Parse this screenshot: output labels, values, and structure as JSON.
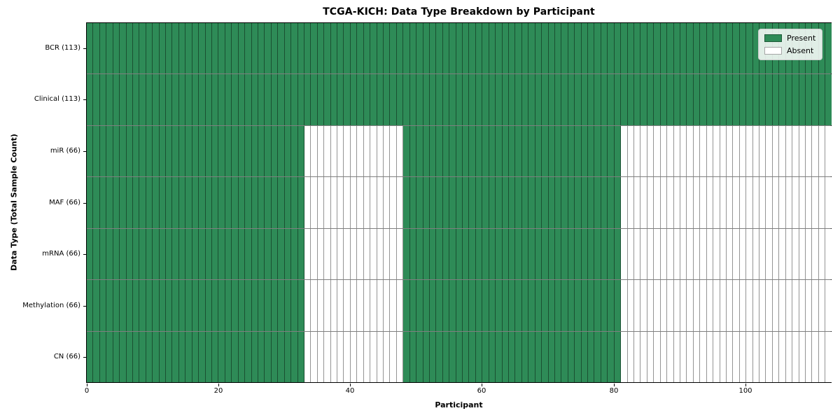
{
  "chart_data": {
    "type": "heatmap",
    "title": "TCGA-KICH: Data Type Breakdown by Participant",
    "xlabel": "Participant",
    "ylabel": "Data Type (Total Sample Count)",
    "n_participants": 113,
    "xlim": [
      0,
      113
    ],
    "x_ticks": [
      0,
      20,
      40,
      60,
      80,
      100
    ],
    "present_color": "#2e8b57",
    "absent_color": "#ffffff",
    "cell_edge_color": "rgba(0,0,0,0.42)",
    "legend_position": "upper right",
    "legend": [
      {
        "label": "Present",
        "color": "#2e8b57"
      },
      {
        "label": "Absent",
        "color": "#ffffff"
      }
    ],
    "rows": [
      {
        "name": "BCR",
        "total_sample_count": 113,
        "label": "BCR (113)",
        "present_ranges": [
          [
            0,
            113
          ]
        ]
      },
      {
        "name": "Clinical",
        "total_sample_count": 113,
        "label": "Clinical (113)",
        "present_ranges": [
          [
            0,
            113
          ]
        ]
      },
      {
        "name": "miR",
        "total_sample_count": 66,
        "label": "miR (66)",
        "present_ranges": [
          [
            0,
            33
          ],
          [
            48,
            81
          ]
        ]
      },
      {
        "name": "MAF",
        "total_sample_count": 66,
        "label": "MAF (66)",
        "present_ranges": [
          [
            0,
            33
          ],
          [
            48,
            81
          ]
        ]
      },
      {
        "name": "mRNA",
        "total_sample_count": 66,
        "label": "mRNA (66)",
        "present_ranges": [
          [
            0,
            33
          ],
          [
            48,
            81
          ]
        ]
      },
      {
        "name": "Methylation",
        "total_sample_count": 66,
        "label": "Methylation (66)",
        "present_ranges": [
          [
            0,
            33
          ],
          [
            48,
            81
          ]
        ]
      },
      {
        "name": "CN",
        "total_sample_count": 66,
        "label": "CN (66)",
        "present_ranges": [
          [
            0,
            33
          ],
          [
            48,
            81
          ]
        ]
      }
    ]
  }
}
